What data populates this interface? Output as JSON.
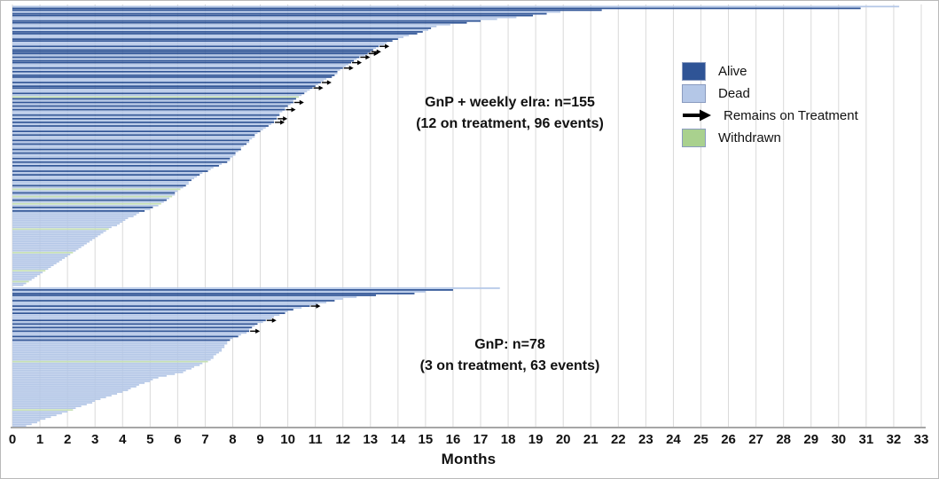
{
  "chart_data": {
    "type": "bar",
    "subtype": "swimmer-plot",
    "xlabel": "Months",
    "xlim": [
      0,
      33
    ],
    "x_ticks": [
      0,
      1,
      2,
      3,
      4,
      5,
      6,
      7,
      8,
      9,
      10,
      11,
      12,
      13,
      14,
      15,
      16,
      17,
      18,
      19,
      20,
      21,
      22,
      23,
      24,
      25,
      26,
      27,
      28,
      29,
      30,
      31,
      32,
      33
    ],
    "grid": "vertical",
    "legend_position": "upper-right",
    "legend": [
      {
        "label": "Alive",
        "type": "box",
        "color": "#2f5496"
      },
      {
        "label": "Dead",
        "type": "box",
        "color": "#b4c7e7"
      },
      {
        "label": "Remains on Treatment",
        "type": "arrow",
        "color": "#000000"
      },
      {
        "label": "Withdrawn",
        "type": "box",
        "color": "#a9d18e"
      }
    ],
    "status_key": {
      "a": "alive",
      "d": "dead",
      "w": "withdrawn"
    },
    "status_colors": {
      "a": "#2f5496",
      "d": "#b4c7e7",
      "w": "#c6e0b4"
    },
    "groups": [
      {
        "annotation_line1": "GnP + weekly elra: n=155",
        "annotation_line2": "(12 on treatment, 96 events)",
        "n": 155,
        "on_treatment": 12,
        "events": 96,
        "bars": [
          [
            32.2,
            "d"
          ],
          [
            30.8,
            "a"
          ],
          [
            21.4,
            "a"
          ],
          [
            19.9,
            "d"
          ],
          [
            19.4,
            "a"
          ],
          [
            18.9,
            "a"
          ],
          [
            18.3,
            "d"
          ],
          [
            17.6,
            "d"
          ],
          [
            17.0,
            "a"
          ],
          [
            16.5,
            "a"
          ],
          [
            15.9,
            "d"
          ],
          [
            15.4,
            "d"
          ],
          [
            15.2,
            "a"
          ],
          [
            15.1,
            "d"
          ],
          [
            14.9,
            "a"
          ],
          [
            14.7,
            "a"
          ],
          [
            14.4,
            "d"
          ],
          [
            14.2,
            "d"
          ],
          [
            14.0,
            "a"
          ],
          [
            13.8,
            "a"
          ],
          [
            13.6,
            "d"
          ],
          [
            13.5,
            "d"
          ],
          [
            13.3,
            "a",
            1
          ],
          [
            13.2,
            "d"
          ],
          [
            13.1,
            "a"
          ],
          [
            13.0,
            "a",
            1
          ],
          [
            12.9,
            "a",
            1
          ],
          [
            12.8,
            "d"
          ],
          [
            12.6,
            "a",
            1
          ],
          [
            12.5,
            "d"
          ],
          [
            12.4,
            "a"
          ],
          [
            12.3,
            "a",
            1
          ],
          [
            12.2,
            "d"
          ],
          [
            12.1,
            "d"
          ],
          [
            12.0,
            "a",
            1
          ],
          [
            11.9,
            "d"
          ],
          [
            11.8,
            "a"
          ],
          [
            11.8,
            "d"
          ],
          [
            11.7,
            "a"
          ],
          [
            11.6,
            "a"
          ],
          [
            11.4,
            "d"
          ],
          [
            11.3,
            "d"
          ],
          [
            11.2,
            "a",
            1
          ],
          [
            11.1,
            "d"
          ],
          [
            11.0,
            "a"
          ],
          [
            10.9,
            "a",
            1
          ],
          [
            10.8,
            "d"
          ],
          [
            10.7,
            "d"
          ],
          [
            10.6,
            "a"
          ],
          [
            10.5,
            "d"
          ],
          [
            10.4,
            "w"
          ],
          [
            10.3,
            "a"
          ],
          [
            10.2,
            "d"
          ],
          [
            10.2,
            "a",
            1
          ],
          [
            10.1,
            "d"
          ],
          [
            10.0,
            "a"
          ],
          [
            9.9,
            "d"
          ],
          [
            9.9,
            "a",
            1
          ],
          [
            9.8,
            "d"
          ],
          [
            9.7,
            "d"
          ],
          [
            9.7,
            "a"
          ],
          [
            9.6,
            "d"
          ],
          [
            9.6,
            "a",
            1
          ],
          [
            9.5,
            "d"
          ],
          [
            9.5,
            "a",
            1
          ],
          [
            9.4,
            "d"
          ],
          [
            9.3,
            "a"
          ],
          [
            9.2,
            "d"
          ],
          [
            9.1,
            "d"
          ],
          [
            9.0,
            "a"
          ],
          [
            8.9,
            "d"
          ],
          [
            8.8,
            "a"
          ],
          [
            8.8,
            "d"
          ],
          [
            8.7,
            "d"
          ],
          [
            8.6,
            "a"
          ],
          [
            8.6,
            "d"
          ],
          [
            8.5,
            "a"
          ],
          [
            8.4,
            "d"
          ],
          [
            8.3,
            "d"
          ],
          [
            8.3,
            "a"
          ],
          [
            8.2,
            "d"
          ],
          [
            8.1,
            "a"
          ],
          [
            8.1,
            "d"
          ],
          [
            8.0,
            "d"
          ],
          [
            7.9,
            "a"
          ],
          [
            7.9,
            "d"
          ],
          [
            7.8,
            "a"
          ],
          [
            7.6,
            "d"
          ],
          [
            7.5,
            "a"
          ],
          [
            7.3,
            "d"
          ],
          [
            7.2,
            "d"
          ],
          [
            7.1,
            "a"
          ],
          [
            6.9,
            "d"
          ],
          [
            6.8,
            "a"
          ],
          [
            6.7,
            "d"
          ],
          [
            6.6,
            "d"
          ],
          [
            6.5,
            "a"
          ],
          [
            6.4,
            "d"
          ],
          [
            6.4,
            "d"
          ],
          [
            6.3,
            "a"
          ],
          [
            6.2,
            "d"
          ],
          [
            6.1,
            "w"
          ],
          [
            6.0,
            "d"
          ],
          [
            5.9,
            "a"
          ],
          [
            5.9,
            "d"
          ],
          [
            5.8,
            "w"
          ],
          [
            5.7,
            "d"
          ],
          [
            5.6,
            "a"
          ],
          [
            5.5,
            "d"
          ],
          [
            5.4,
            "w"
          ],
          [
            5.3,
            "d"
          ],
          [
            5.1,
            "a"
          ],
          [
            5.0,
            "d"
          ],
          [
            4.8,
            "a"
          ],
          [
            4.6,
            "d"
          ],
          [
            4.5,
            "d"
          ],
          [
            4.4,
            "d"
          ],
          [
            4.2,
            "d"
          ],
          [
            4.1,
            "d"
          ],
          [
            4.0,
            "d"
          ],
          [
            3.9,
            "d"
          ],
          [
            3.8,
            "d"
          ],
          [
            3.6,
            "d"
          ],
          [
            3.5,
            "w"
          ],
          [
            3.4,
            "d"
          ],
          [
            3.3,
            "d"
          ],
          [
            3.2,
            "d"
          ],
          [
            3.1,
            "d"
          ],
          [
            3.0,
            "d"
          ],
          [
            2.9,
            "d"
          ],
          [
            2.8,
            "d"
          ],
          [
            2.7,
            "d"
          ],
          [
            2.6,
            "d"
          ],
          [
            2.5,
            "d"
          ],
          [
            2.4,
            "d"
          ],
          [
            2.3,
            "d"
          ],
          [
            2.2,
            "w"
          ],
          [
            2.1,
            "d"
          ],
          [
            2.0,
            "d"
          ],
          [
            1.9,
            "d"
          ],
          [
            1.8,
            "d"
          ],
          [
            1.7,
            "d"
          ],
          [
            1.6,
            "d"
          ],
          [
            1.5,
            "d"
          ],
          [
            1.4,
            "d"
          ],
          [
            1.3,
            "d"
          ],
          [
            1.2,
            "w"
          ],
          [
            1.1,
            "d"
          ],
          [
            1.0,
            "d"
          ],
          [
            0.9,
            "d"
          ],
          [
            0.8,
            "d"
          ],
          [
            0.7,
            "d"
          ],
          [
            0.6,
            "w"
          ],
          [
            0.5,
            "d"
          ],
          [
            0.4,
            "d"
          ]
        ]
      },
      {
        "annotation_line1": "GnP: n=78",
        "annotation_line2": "(3 on treatment, 63 events)",
        "n": 78,
        "on_treatment": 3,
        "events": 63,
        "bars": [
          [
            17.7,
            "d"
          ],
          [
            16.0,
            "a"
          ],
          [
            15.0,
            "d"
          ],
          [
            14.6,
            "a"
          ],
          [
            13.2,
            "a"
          ],
          [
            12.5,
            "d"
          ],
          [
            12.0,
            "d"
          ],
          [
            11.7,
            "a"
          ],
          [
            11.4,
            "d"
          ],
          [
            11.1,
            "d"
          ],
          [
            10.8,
            "a",
            1
          ],
          [
            10.5,
            "d"
          ],
          [
            10.2,
            "a"
          ],
          [
            10.0,
            "d"
          ],
          [
            9.9,
            "a"
          ],
          [
            9.7,
            "d"
          ],
          [
            9.5,
            "d"
          ],
          [
            9.4,
            "d"
          ],
          [
            9.2,
            "a",
            1
          ],
          [
            9.1,
            "d"
          ],
          [
            8.9,
            "a"
          ],
          [
            8.8,
            "d"
          ],
          [
            8.7,
            "a"
          ],
          [
            8.6,
            "d"
          ],
          [
            8.6,
            "a",
            1
          ],
          [
            8.5,
            "d"
          ],
          [
            8.3,
            "d"
          ],
          [
            8.2,
            "a"
          ],
          [
            8.0,
            "d"
          ],
          [
            7.9,
            "a"
          ],
          [
            7.8,
            "d"
          ],
          [
            7.8,
            "d"
          ],
          [
            7.7,
            "d"
          ],
          [
            7.7,
            "d"
          ],
          [
            7.6,
            "d"
          ],
          [
            7.6,
            "d"
          ],
          [
            7.5,
            "d"
          ],
          [
            7.4,
            "d"
          ],
          [
            7.3,
            "d"
          ],
          [
            7.3,
            "d"
          ],
          [
            7.2,
            "d"
          ],
          [
            7.1,
            "w"
          ],
          [
            6.9,
            "d"
          ],
          [
            6.8,
            "d"
          ],
          [
            6.6,
            "d"
          ],
          [
            6.5,
            "d"
          ],
          [
            6.3,
            "d"
          ],
          [
            6.2,
            "d"
          ],
          [
            5.9,
            "d"
          ],
          [
            5.6,
            "d"
          ],
          [
            5.3,
            "d"
          ],
          [
            5.1,
            "d"
          ],
          [
            5.0,
            "d"
          ],
          [
            4.8,
            "d"
          ],
          [
            4.6,
            "d"
          ],
          [
            4.5,
            "d"
          ],
          [
            4.3,
            "d"
          ],
          [
            4.2,
            "d"
          ],
          [
            4.0,
            "d"
          ],
          [
            3.8,
            "d"
          ],
          [
            3.6,
            "d"
          ],
          [
            3.4,
            "d"
          ],
          [
            3.2,
            "d"
          ],
          [
            3.0,
            "d"
          ],
          [
            2.9,
            "d"
          ],
          [
            2.7,
            "d"
          ],
          [
            2.5,
            "d"
          ],
          [
            2.3,
            "d"
          ],
          [
            2.2,
            "w"
          ],
          [
            2.0,
            "d"
          ],
          [
            1.8,
            "d"
          ],
          [
            1.6,
            "d"
          ],
          [
            1.4,
            "d"
          ],
          [
            1.2,
            "d"
          ],
          [
            1.0,
            "d"
          ],
          [
            0.9,
            "d"
          ],
          [
            0.7,
            "d"
          ],
          [
            0.5,
            "d"
          ]
        ]
      }
    ],
    "colors": {
      "gridline": "#d9d9d9",
      "axis_line": "#a6a6a6",
      "text": "#111111",
      "background": "#ffffff"
    }
  }
}
